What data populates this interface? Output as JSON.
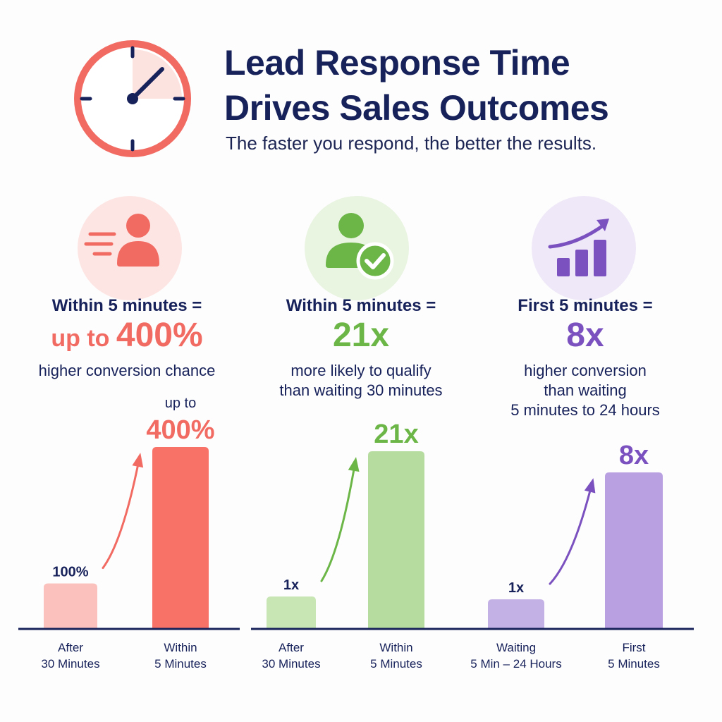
{
  "header": {
    "title_line_1": "Lead Response Time",
    "title_line_2": "Drives Sales Outcomes",
    "subtitle": "The faster you respond, the better the results.",
    "icon": "clock-icon"
  },
  "colors": {
    "navy": "#17215a",
    "red": "#f26b63",
    "red_light": "#fbc2bd",
    "green": "#6cb648",
    "green_light": "#b7dca0",
    "purple": "#7b51c0",
    "purple_light": "#b9a0e1"
  },
  "panels": [
    {
      "icon": "fast-person-icon",
      "headline": "Within 5 minutes =",
      "big_prefix": "up to ",
      "big_value": "400%",
      "desc_lines": [
        "higher conversion chance"
      ]
    },
    {
      "icon": "qualified-person-icon",
      "headline": "Within 5 minutes =",
      "big_prefix": "",
      "big_value": "21x",
      "desc_lines": [
        "more likely to qualify",
        "than waiting 30 minutes"
      ]
    },
    {
      "icon": "growth-chart-icon",
      "headline": "First 5 minutes =",
      "big_prefix": "",
      "big_value": "8x",
      "desc_lines": [
        "higher conversion",
        "than waiting",
        "5 minutes to 24 hours"
      ]
    }
  ],
  "chart_data": [
    {
      "type": "bar",
      "categories": [
        "After\n30 Minutes",
        "Within\n5 Minutes"
      ],
      "values": [
        100,
        400
      ],
      "data_labels": [
        "100%",
        "400%"
      ],
      "data_label_prefix": [
        "",
        "up to"
      ],
      "ylim": [
        0,
        400
      ],
      "grid": false,
      "colors": [
        "#fbc2bd",
        "#f87268"
      ]
    },
    {
      "type": "bar",
      "categories": [
        "After\n30 Minutes",
        "Within\n5 Minutes"
      ],
      "values": [
        1,
        21
      ],
      "data_labels": [
        "1x",
        "21x"
      ],
      "data_label_prefix": [
        "",
        ""
      ],
      "ylim": [
        0,
        21
      ],
      "grid": false,
      "colors": [
        "#c8e5b4",
        "#b7dca0"
      ]
    },
    {
      "type": "bar",
      "categories": [
        "Waiting\n5 Min – 24 Hours",
        "First\n5 Minutes"
      ],
      "values": [
        1,
        8
      ],
      "data_labels": [
        "1x",
        "8x"
      ],
      "data_label_prefix": [
        "",
        ""
      ],
      "ylim": [
        0,
        8
      ],
      "grid": false,
      "colors": [
        "#c3b1e6",
        "#b9a0e1"
      ]
    }
  ]
}
